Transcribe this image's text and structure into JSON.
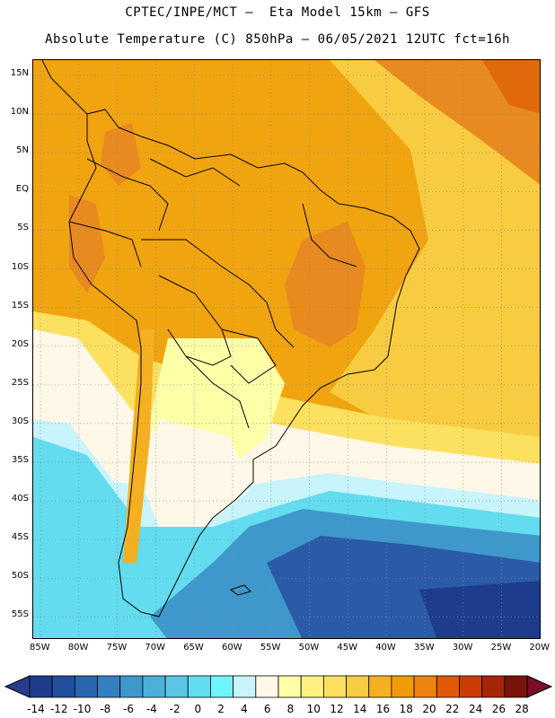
{
  "title": {
    "line1": "CPTEC/INPE/MCT –  Eta Model 15km – GFS",
    "line2": "Absolute Temperature (C) 850hPa – 06/05/2021 12UTC fct=16h"
  },
  "axes": {
    "lat_labels": [
      "15N",
      "10N",
      "5N",
      "EQ",
      "5S",
      "10S",
      "15S",
      "20S",
      "25S",
      "30S",
      "35S",
      "40S",
      "45S",
      "50S",
      "55S"
    ],
    "lon_labels": [
      "85W",
      "80W",
      "75W",
      "70W",
      "65W",
      "60W",
      "55W",
      "50W",
      "45W",
      "40W",
      "35W",
      "30W",
      "25W",
      "20W"
    ]
  },
  "colorbar": {
    "labels": [
      "-14",
      "-12",
      "-10",
      "-8",
      "-6",
      "-4",
      "-2",
      "0",
      "2",
      "4",
      "6",
      "8",
      "10",
      "12",
      "14",
      "16",
      "18",
      "20",
      "22",
      "24",
      "26",
      "28"
    ],
    "colors": [
      "#1e3c8c",
      "#234e9e",
      "#2a66b0",
      "#3580c0",
      "#3f98cc",
      "#4cb0d8",
      "#58c6e4",
      "#62dcee",
      "#6ef4fa",
      "#c8f4fc",
      "#fff8e8",
      "#ffffa8",
      "#fff080",
      "#fce060",
      "#f8cc40",
      "#f4b020",
      "#f09a08",
      "#ec8410",
      "#e05a08",
      "#cc3c06",
      "#a82408",
      "#7a1408"
    ],
    "left_arrow_color": "#283c8c",
    "right_arrow_color": "#7a0e28"
  },
  "map_colors": {
    "ocean_deep": "#2a5aa8",
    "ocean_mid": "#3f98cc",
    "ocean_light": "#62dcee",
    "cyan_pale": "#c8f4fc",
    "cream": "#fff8e8",
    "yellow_pale": "#ffffa8",
    "yellow": "#fce060",
    "gold": "#f8cc40",
    "orange_light": "#f4b020",
    "orange": "#f0a410",
    "orange_dark": "#e88a20",
    "red_orange": "#e06a0a",
    "grid": "#888888",
    "coast": "#000000"
  }
}
